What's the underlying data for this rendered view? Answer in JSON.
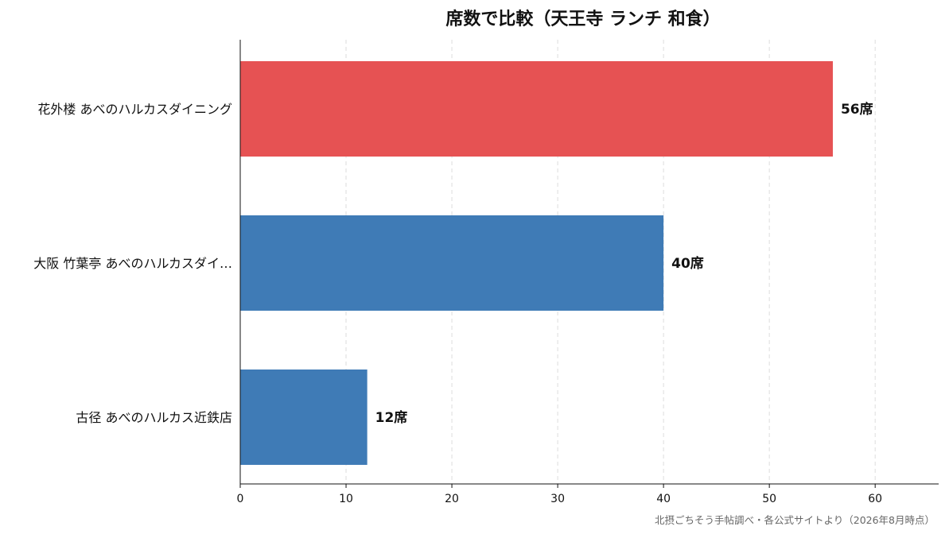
{
  "chart_data": {
    "type": "bar",
    "orientation": "horizontal",
    "title": "席数で比較（天王寺 ランチ 和食）",
    "categories": [
      "花外楼 あべのハルカスダイニング",
      "大阪 竹葉亭 あべのハルカスダイ…",
      "古径 あべのハルカス近鉄店"
    ],
    "values": [
      56,
      40,
      12
    ],
    "data_labels": [
      "56席",
      "40席",
      "12席"
    ],
    "colors": [
      "#e65253",
      "#3f7bb6",
      "#3f7bb6"
    ],
    "xlim": [
      0,
      66
    ],
    "xticks": [
      0,
      10,
      20,
      30,
      40,
      50,
      60
    ],
    "grid": "vertical dashed",
    "source": "北摂ごちそう手帖調べ・各公式サイトより（2026年8月時点）"
  }
}
